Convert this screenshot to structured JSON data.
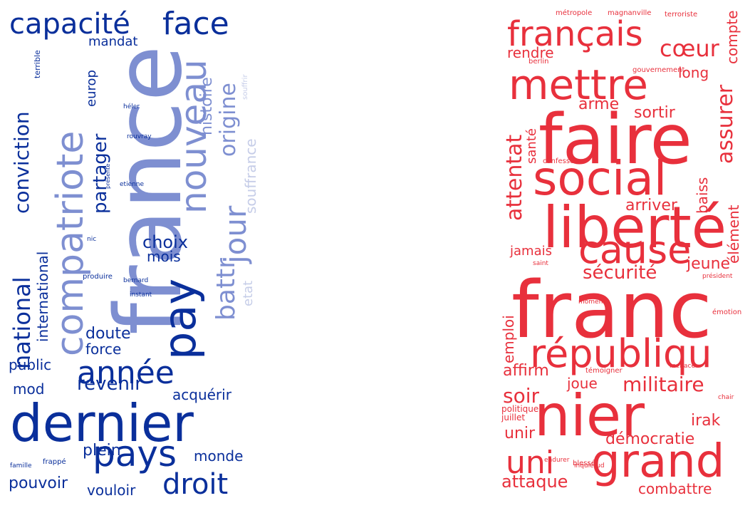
{
  "palettes": {
    "blue": {
      "dark": "#0a2f9b",
      "mid": "#7e8fd1",
      "light": "#c6cde8"
    },
    "red": {
      "main": "#e8303c",
      "soft": "#f27b83"
    }
  },
  "clouds": [
    {
      "id": "blue",
      "words": [
        {
          "text": "capacité",
          "color": "dark"
        },
        {
          "text": "face",
          "color": "dark"
        },
        {
          "text": "mandat",
          "color": "dark"
        },
        {
          "text": "europ",
          "color": "dark"
        },
        {
          "text": "terrible",
          "color": "dark"
        },
        {
          "text": "conviction",
          "color": "dark"
        },
        {
          "text": "compatriote",
          "color": "mid"
        },
        {
          "text": "france",
          "color": "mid"
        },
        {
          "text": "nouveau",
          "color": "mid"
        },
        {
          "text": "histoire",
          "color": "mid"
        },
        {
          "text": "origine",
          "color": "mid"
        },
        {
          "text": "souffrir",
          "color": "light"
        },
        {
          "text": "souffrance",
          "color": "light"
        },
        {
          "text": "partager",
          "color": "dark"
        },
        {
          "text": "jour",
          "color": "mid"
        },
        {
          "text": "battr",
          "color": "mid"
        },
        {
          "text": "etat",
          "color": "light"
        },
        {
          "text": "héler",
          "color": "dark"
        },
        {
          "text": "rouvray",
          "color": "dark"
        },
        {
          "text": "présente",
          "color": "dark"
        },
        {
          "text": "etienne",
          "color": "dark"
        },
        {
          "text": "nic",
          "color": "dark"
        },
        {
          "text": "national",
          "color": "dark"
        },
        {
          "text": "international",
          "color": "dark"
        },
        {
          "text": "choix",
          "color": "dark"
        },
        {
          "text": "mois",
          "color": "dark"
        },
        {
          "text": "pay",
          "color": "dark"
        },
        {
          "text": "produire",
          "color": "dark"
        },
        {
          "text": "bernard",
          "color": "dark"
        },
        {
          "text": "instant",
          "color": "dark"
        },
        {
          "text": "doute",
          "color": "dark"
        },
        {
          "text": "force",
          "color": "dark"
        },
        {
          "text": "année",
          "color": "dark"
        },
        {
          "text": "public",
          "color": "dark"
        },
        {
          "text": "mod",
          "color": "dark"
        },
        {
          "text": "revenir",
          "color": "dark"
        },
        {
          "text": "acquérir",
          "color": "dark"
        },
        {
          "text": "dernier",
          "color": "dark"
        },
        {
          "text": "pays",
          "color": "dark"
        },
        {
          "text": "plein",
          "color": "dark"
        },
        {
          "text": "monde",
          "color": "dark"
        },
        {
          "text": "famille",
          "color": "dark"
        },
        {
          "text": "frappé",
          "color": "dark"
        },
        {
          "text": "droit",
          "color": "dark"
        },
        {
          "text": "pouvoir",
          "color": "dark"
        },
        {
          "text": "vouloir",
          "color": "dark"
        }
      ]
    },
    {
      "id": "red",
      "words": [
        {
          "text": "métropole",
          "color": "main"
        },
        {
          "text": "magnanville",
          "color": "main"
        },
        {
          "text": "terroriste",
          "color": "main"
        },
        {
          "text": "français",
          "color": "main"
        },
        {
          "text": "berlin",
          "color": "main"
        },
        {
          "text": "gouvernement",
          "color": "main"
        },
        {
          "text": "rendre",
          "color": "main"
        },
        {
          "text": "cœur",
          "color": "main"
        },
        {
          "text": "compte",
          "color": "main"
        },
        {
          "text": "mettre",
          "color": "main"
        },
        {
          "text": "long",
          "color": "main"
        },
        {
          "text": "arme",
          "color": "main"
        },
        {
          "text": "assurer",
          "color": "main"
        },
        {
          "text": "sortir",
          "color": "main"
        },
        {
          "text": "faire",
          "color": "main"
        },
        {
          "text": "attentat",
          "color": "main"
        },
        {
          "text": "santé",
          "color": "main"
        },
        {
          "text": "confesser",
          "color": "main"
        },
        {
          "text": "social",
          "color": "main"
        },
        {
          "text": "baiss",
          "color": "main"
        },
        {
          "text": "liberté",
          "color": "main"
        },
        {
          "text": "arriver",
          "color": "main"
        },
        {
          "text": "élément",
          "color": "main"
        },
        {
          "text": "jamais",
          "color": "main"
        },
        {
          "text": "cause",
          "color": "main"
        },
        {
          "text": "jeune",
          "color": "main"
        },
        {
          "text": "saint",
          "color": "main"
        },
        {
          "text": "sécurité",
          "color": "main"
        },
        {
          "text": "président",
          "color": "main"
        },
        {
          "text": "franc",
          "color": "main"
        },
        {
          "text": "moment",
          "color": "main"
        },
        {
          "text": "émotion",
          "color": "main"
        },
        {
          "text": "emploi",
          "color": "main"
        },
        {
          "text": "républiqu",
          "color": "main"
        },
        {
          "text": "affirm",
          "color": "main"
        },
        {
          "text": "témoigner",
          "color": "main"
        },
        {
          "text": "menace",
          "color": "main"
        },
        {
          "text": "joue",
          "color": "main"
        },
        {
          "text": "militaire",
          "color": "main"
        },
        {
          "text": "soir",
          "color": "main"
        },
        {
          "text": "chair",
          "color": "main"
        },
        {
          "text": "nier",
          "color": "main"
        },
        {
          "text": "politique",
          "color": "main"
        },
        {
          "text": "juillet",
          "color": "main"
        },
        {
          "text": "irak",
          "color": "main"
        },
        {
          "text": "unir",
          "color": "main"
        },
        {
          "text": "démocratie",
          "color": "main"
        },
        {
          "text": "endurer",
          "color": "main"
        },
        {
          "text": "inquiétud",
          "color": "main"
        },
        {
          "text": "uni",
          "color": "main"
        },
        {
          "text": "grand",
          "color": "main"
        },
        {
          "text": "blessé",
          "color": "main"
        },
        {
          "text": "attaque",
          "color": "main"
        },
        {
          "text": "combattre",
          "color": "main"
        }
      ]
    }
  ]
}
